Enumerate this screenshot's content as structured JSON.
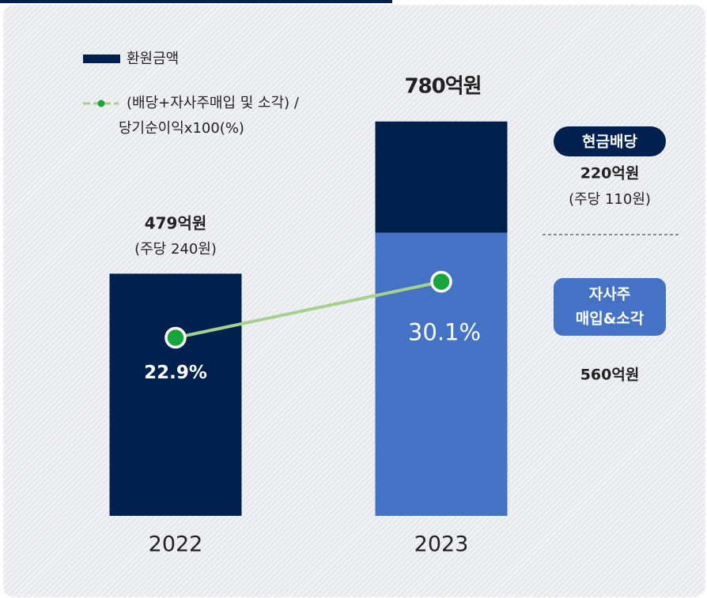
{
  "chart_data": {
    "type": "bar",
    "categories": [
      "2022",
      "2023"
    ],
    "series": [
      {
        "name": "환원금액",
        "color": "#00214f",
        "values": [
          479,
          780
        ],
        "value_labels": [
          "479억원",
          "780억원"
        ],
        "per_share_labels": [
          "(주당 240원)",
          null
        ],
        "segments": [
          null,
          [
            {
              "name": [
                "자사주",
                "매입&소각"
              ],
              "color": "#4472c4",
              "value": 560,
              "value_label": "560억원"
            },
            {
              "name": "현금배당",
              "color": "#00214f",
              "value": 220,
              "value_label": "220억원",
              "per_share_label": "(주당 110원)"
            }
          ]
        ]
      },
      {
        "type": "line",
        "name": [
          "(배당+자사주매입 및 소각) /",
          "당기순이익x100(%)"
        ],
        "color": "#a6d08c",
        "marker_color": "#1aa53c",
        "values": [
          22.9,
          30.1
        ],
        "value_labels": [
          "22.9%",
          "30.1%"
        ],
        "axis": "y2"
      }
    ],
    "ylim": [
      0,
      800
    ],
    "y2lim": [
      0,
      52
    ]
  }
}
